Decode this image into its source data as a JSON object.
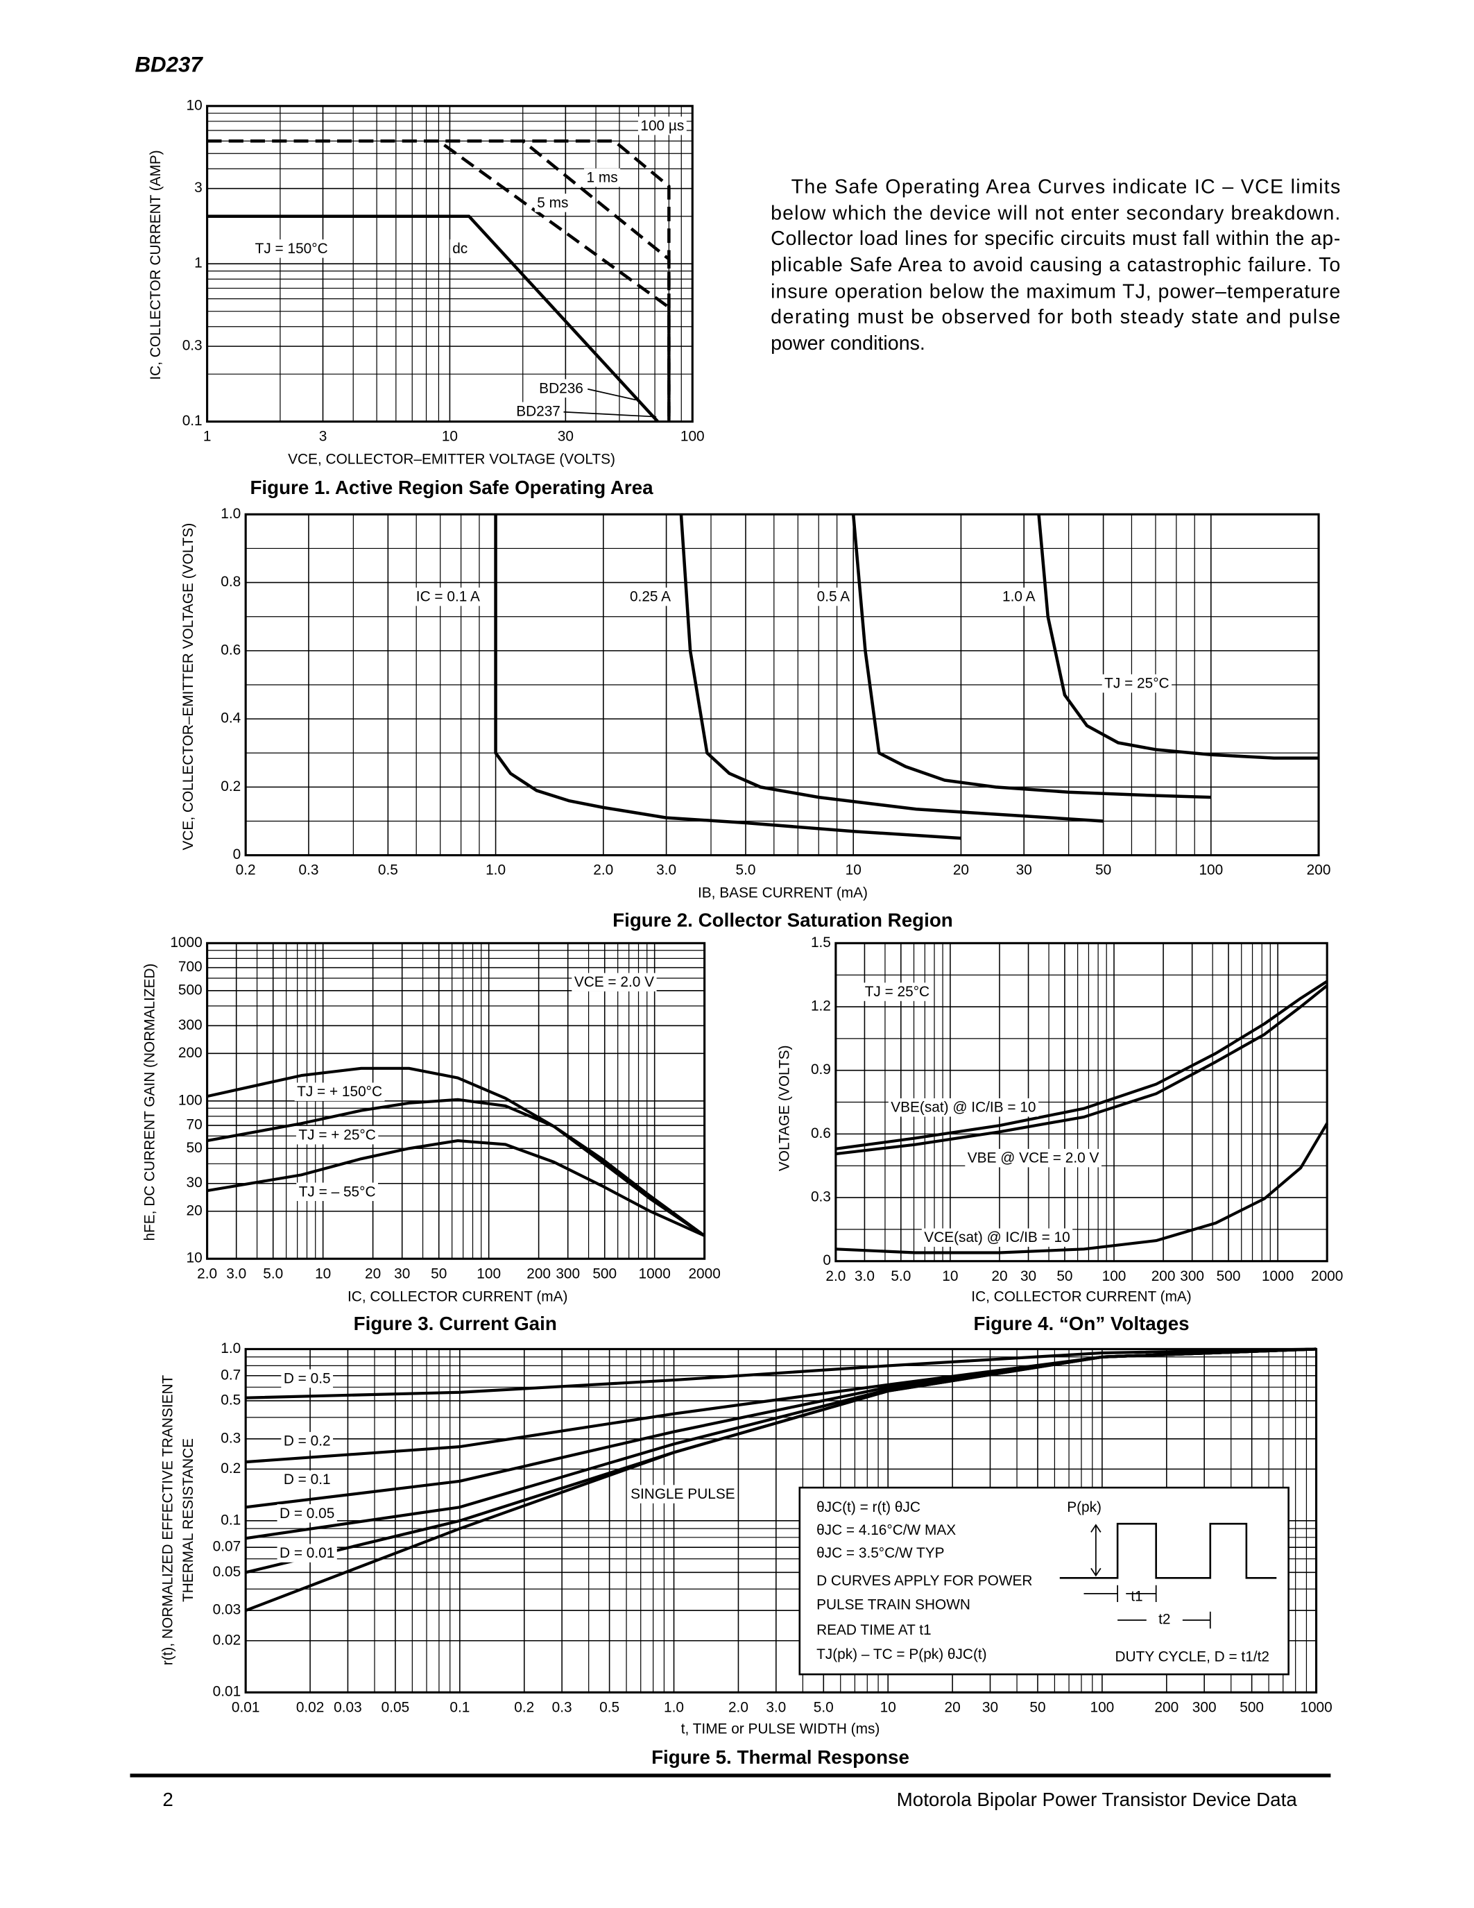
{
  "header": {
    "part": "BD237"
  },
  "text": {
    "lines": [
      "The Safe Operating Area Curves indicate IC – VCE limits",
      "below which the device will not enter secondary breakdown.",
      "Collector load lines for specific circuits must fall within the ap-",
      "plicable Safe Area to avoid causing a catastrophic failure. To",
      "insure operation below the maximum TJ, power–temperature",
      "derating must be observed for both steady state and pulse",
      "power conditions."
    ]
  },
  "chart_data": [
    {
      "type": "line",
      "title": "Figure 1. Active Region Safe Operating Area",
      "xlabel": "VCE, COLLECTOR–EMITTER VOLTAGE (VOLTS)",
      "ylabel": [
        "IC, COLLECTOR CURRENT (AMP)"
      ],
      "x_scale": "log",
      "y_scale": "log",
      "grid": true,
      "xlim": [
        1,
        100
      ],
      "ylim": [
        0.1,
        10
      ],
      "xticks": [
        1,
        3,
        10,
        30,
        100
      ],
      "yticks": [
        0.1,
        0.3,
        1,
        3,
        10
      ],
      "series": [
        {
          "name": "100 µs",
          "color": "#000",
          "dash": true,
          "x": [
            1,
            47.6,
            80,
            80
          ],
          "values": [
            6,
            6,
            3.1,
            0.1
          ]
        },
        {
          "name": "1 ms",
          "color": "#000",
          "dash": true,
          "x": [
            1,
            20,
            80,
            80
          ],
          "values": [
            6,
            6,
            1.07,
            0.1
          ]
        },
        {
          "name": "5 ms",
          "color": "#000",
          "dash": true,
          "x": [
            1,
            9,
            80,
            80
          ],
          "values": [
            6,
            6,
            0.53,
            0.1
          ]
        },
        {
          "name": "dc",
          "color": "#000",
          "dash": false,
          "x": [
            1,
            12,
            72
          ],
          "values": [
            2,
            2,
            0.1
          ]
        }
      ],
      "annotations": [
        "TJ = 150°C",
        "BD236",
        "BD237"
      ]
    },
    {
      "type": "line",
      "title": "Figure 2. Collector Saturation Region",
      "xlabel": "IB, BASE CURRENT (mA)",
      "ylabel": [
        "VCE, COLLECTOR–EMITTER VOLTAGE (VOLTS)"
      ],
      "x_scale": "log",
      "y_scale": "linear",
      "grid": true,
      "xlim": [
        0.2,
        200
      ],
      "ylim": [
        0,
        1
      ],
      "xticks": [
        0.2,
        0.3,
        0.5,
        {
          "value": 1,
          "label": "1.0"
        },
        {
          "value": 2,
          "label": "2.0"
        },
        {
          "value": 3,
          "label": "3.0"
        },
        {
          "value": 5,
          "label": "5.0"
        },
        10,
        20,
        30,
        50,
        100,
        200
      ],
      "yticks": [
        0,
        0.2,
        0.4,
        0.6,
        0.8,
        {
          "value": 1,
          "label": "1.0"
        }
      ],
      "series": [
        {
          "name": "IC = 0.1 A",
          "color": "#000",
          "x": [
            1,
            1,
            1.1,
            1.3,
            1.6,
            2,
            3,
            5,
            10,
            20
          ],
          "values": [
            1,
            0.3,
            0.24,
            0.19,
            0.16,
            0.14,
            0.11,
            0.095,
            0.07,
            0.05
          ]
        },
        {
          "name": "0.25 A",
          "color": "#000",
          "x": [
            3.3,
            3.5,
            3.9,
            4.5,
            5.5,
            8,
            15,
            30,
            50
          ],
          "values": [
            1,
            0.6,
            0.3,
            0.24,
            0.2,
            0.17,
            0.135,
            0.115,
            0.1
          ]
        },
        {
          "name": "0.5 A",
          "color": "#000",
          "x": [
            10,
            10.8,
            11.8,
            14,
            18,
            25,
            40,
            70,
            100
          ],
          "values": [
            1,
            0.6,
            0.3,
            0.26,
            0.22,
            0.2,
            0.185,
            0.175,
            0.17
          ]
        },
        {
          "name": "1.0 A",
          "color": "#000",
          "x": [
            33,
            35,
            39,
            45,
            55,
            70,
            100,
            150,
            200
          ],
          "values": [
            1,
            0.7,
            0.47,
            0.38,
            0.33,
            0.31,
            0.295,
            0.285,
            0.285
          ]
        }
      ],
      "annotations": [
        "TJ = 25°C"
      ]
    },
    {
      "type": "line",
      "title": "Figure 3. Current Gain",
      "xlabel": "IC, COLLECTOR CURRENT (mA)",
      "ylabel": [
        "hFE, DC CURRENT GAIN (NORMALIZED)"
      ],
      "x_scale": "log",
      "y_scale": "log",
      "grid": true,
      "xlim": [
        2,
        2000
      ],
      "ylim": [
        10,
        1000
      ],
      "xticks": [
        {
          "value": 2,
          "label": "2.0"
        },
        {
          "value": 3,
          "label": "3.0"
        },
        {
          "value": 5,
          "label": "5.0"
        },
        10,
        20,
        30,
        50,
        100,
        200,
        300,
        500,
        1000,
        2000
      ],
      "yticks": [
        10,
        20,
        30,
        50,
        70,
        100,
        200,
        300,
        500,
        700,
        1000
      ],
      "series": [
        {
          "name": "TJ = + 150°C",
          "color": "#000",
          "x": [
            2,
            7.4,
            17,
            33,
            65,
            126,
            247,
            481,
            940,
            2000
          ],
          "values": [
            107,
            145,
            161,
            161,
            140,
            104,
            69,
            41,
            24,
            14
          ]
        },
        {
          "name": "TJ = + 25°C",
          "color": "#000",
          "x": [
            2,
            7.4,
            17,
            33,
            65,
            126,
            247,
            481,
            940,
            2000
          ],
          "values": [
            56,
            72,
            87,
            97,
            102,
            93,
            69,
            43,
            25,
            14
          ]
        },
        {
          "name": "TJ = – 55°C",
          "color": "#000",
          "x": [
            2,
            7.4,
            17,
            33,
            65,
            126,
            247,
            481,
            940,
            2000
          ],
          "values": [
            27,
            34,
            43,
            50,
            56,
            53,
            41,
            29,
            20,
            14
          ]
        }
      ],
      "annotations": [
        "VCE = 2.0 V"
      ]
    },
    {
      "type": "line",
      "title": "Figure 4. “On” Voltages",
      "xlabel": "IC, COLLECTOR CURRENT (mA)",
      "ylabel": [
        "VOLTAGE (VOLTS)"
      ],
      "x_scale": "log",
      "y_scale": "linear",
      "grid": true,
      "xlim": [
        2,
        2000
      ],
      "ylim": [
        0,
        1.5
      ],
      "xticks": [
        {
          "value": 2,
          "label": "2.0"
        },
        {
          "value": 3,
          "label": "3.0"
        },
        {
          "value": 5,
          "label": "5.0"
        },
        10,
        20,
        30,
        50,
        100,
        200,
        300,
        500,
        1000,
        2000
      ],
      "yticks": [
        0,
        0.3,
        0.6,
        0.9,
        1.2,
        1.5
      ],
      "series": [
        {
          "name": "VBE(sat) @ IC/IB = 10",
          "color": "#000",
          "x": [
            2,
            6.1,
            20,
            65.5,
            181,
            418,
            830,
            1380,
            2000
          ],
          "values": [
            0.53,
            0.58,
            0.64,
            0.72,
            0.835,
            0.98,
            1.12,
            1.24,
            1.32
          ]
        },
        {
          "name": "VBE @ VCE = 2.0 V",
          "color": "#000",
          "x": [
            2,
            6.1,
            20,
            65.5,
            181,
            418,
            830,
            1380,
            2000
          ],
          "values": [
            0.506,
            0.55,
            0.61,
            0.68,
            0.79,
            0.94,
            1.07,
            1.2,
            1.3
          ]
        },
        {
          "name": "VCE(sat) @ IC/IB = 10",
          "color": "#000",
          "x": [
            2,
            6.1,
            20,
            65.5,
            181,
            418,
            830,
            1380,
            2000
          ],
          "values": [
            0.057,
            0.04,
            0.04,
            0.057,
            0.097,
            0.18,
            0.295,
            0.44,
            0.65
          ]
        }
      ],
      "annotations": [
        "TJ = 25°C"
      ]
    },
    {
      "type": "line",
      "title": "Figure 5. Thermal Response",
      "xlabel": "t, TIME or PULSE WIDTH (ms)",
      "ylabel": [
        "r(t), NORMALIZED EFFECTIVE TRANSIENT",
        "THERMAL RESISTANCE"
      ],
      "x_scale": "log",
      "y_scale": "log",
      "grid": true,
      "xlim": [
        0.01,
        1000
      ],
      "ylim": [
        0.01,
        1
      ],
      "xticks": [
        0.01,
        0.02,
        0.03,
        0.05,
        0.1,
        0.2,
        0.3,
        0.5,
        {
          "value": 1,
          "label": "1.0"
        },
        {
          "value": 2,
          "label": "2.0"
        },
        {
          "value": 3,
          "label": "3.0"
        },
        {
          "value": 5,
          "label": "5.0"
        },
        10,
        20,
        30,
        50,
        100,
        200,
        300,
        500,
        1000
      ],
      "yticks": [
        0.01,
        0.02,
        0.03,
        0.05,
        0.07,
        0.1,
        0.2,
        0.3,
        0.5,
        0.7,
        {
          "value": 1,
          "label": "1.0"
        }
      ],
      "series": [
        {
          "name": "D = 0.5",
          "color": "#000",
          "x": [
            0.01,
            0.1,
            1,
            10,
            100,
            1000
          ],
          "values": [
            0.52,
            0.56,
            0.66,
            0.8,
            0.95,
            1
          ]
        },
        {
          "name": "D = 0.2",
          "color": "#000",
          "x": [
            0.01,
            0.1,
            1,
            10,
            100,
            1000
          ],
          "values": [
            0.22,
            0.27,
            0.42,
            0.62,
            0.9,
            1
          ]
        },
        {
          "name": "D = 0.1",
          "color": "#000",
          "x": [
            0.01,
            0.1,
            1,
            10,
            100,
            1000
          ],
          "values": [
            0.12,
            0.17,
            0.33,
            0.6,
            0.9,
            1
          ]
        },
        {
          "name": "D = 0.05",
          "color": "#000",
          "x": [
            0.01,
            0.1,
            1,
            10,
            100,
            1000
          ],
          "values": [
            0.079,
            0.12,
            0.28,
            0.58,
            0.9,
            1
          ]
        },
        {
          "name": "D = 0.01",
          "color": "#000",
          "x": [
            0.01,
            0.1,
            1,
            10,
            100,
            1000
          ],
          "values": [
            0.05,
            0.1,
            0.25,
            0.57,
            0.9,
            1
          ]
        },
        {
          "name": "SINGLE PULSE",
          "color": "#000",
          "x": [
            0.01,
            0.1,
            1,
            10,
            100,
            1000
          ],
          "values": [
            0.03,
            0.09,
            0.25,
            0.57,
            0.9,
            1
          ]
        }
      ],
      "inset": {
        "lines": [
          "θJC(t) = r(t) θJC",
          "θJC = 4.16°C/W MAX",
          "θJC = 3.5°C/W TYP",
          "D CURVES APPLY FOR POWER",
          "PULSE TRAIN SHOWN",
          "READ TIME AT t1",
          "TJ(pk) – TC = P(pk) θJC(t)"
        ],
        "pk": "P(pk)",
        "t1": "t1",
        "t2": "t2",
        "duty": "DUTY CYCLE, D = t1/t2"
      }
    }
  ],
  "footer": {
    "page": "2",
    "source": "Motorola Bipolar Power Transistor Device Data"
  }
}
